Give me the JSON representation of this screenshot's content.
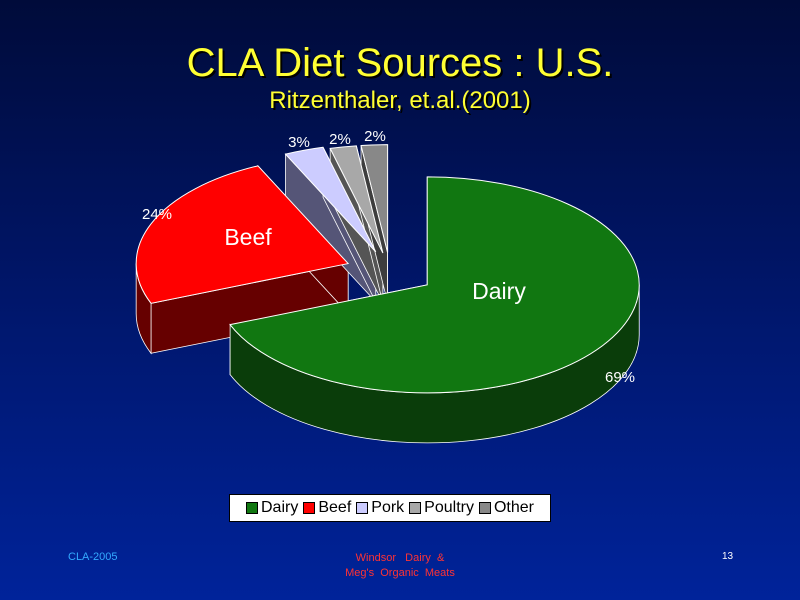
{
  "slide": {
    "title": "CLA Diet Sources : U.S.",
    "subtitle": "Ritzenthaler, et.al.(2001)",
    "footer_left": "CLA-2005",
    "footer_center_line1": "Windsor   Dairy  &",
    "footer_center_line2": "Meg's  Organic  Meats",
    "page_number": "13"
  },
  "chart_data": {
    "type": "pie",
    "style": "3d-exploded",
    "categories": [
      "Dairy",
      "Beef",
      "Pork",
      "Poultry",
      "Other"
    ],
    "values": [
      69,
      24,
      3,
      2,
      2
    ],
    "value_labels": [
      "69%",
      "24%",
      "3%",
      "2%",
      "2%"
    ],
    "slice_labels": [
      "Dairy",
      "Beef",
      "",
      "",
      ""
    ],
    "colors": [
      "#117711",
      "#ff0000",
      "#ccccff",
      "#a8a8a8",
      "#888888"
    ],
    "side_colors": [
      "#0a3d0a",
      "#660000",
      "#555577",
      "#555555",
      "#3d3d3d"
    ],
    "legend": [
      "Dairy",
      "Beef",
      "Pork",
      "Poultry",
      "Other"
    ],
    "legend_position": "bottom"
  }
}
